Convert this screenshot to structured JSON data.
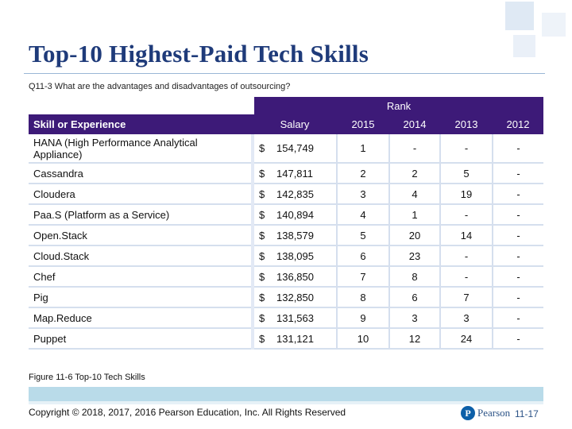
{
  "colors": {
    "title": "#1f3b7a",
    "header_bg": "#3d1a78",
    "row_line": "#d5dfee",
    "band": "#b9dbe9",
    "logo": "#0c5fa8"
  },
  "slide": {
    "title": "Top-10 Highest-Paid Tech Skills",
    "question": "Q11-3 What are the advantages and disadvantages of outsourcing?",
    "caption": "Figure 11-6 Top-10 Tech Skills",
    "copyright": "Copyright © 2018, 2017, 2016 Pearson Education, Inc. All Rights Reserved",
    "logo_text": "Pearson",
    "logo_letter": "P",
    "page_number": "11-17"
  },
  "table": {
    "rank_group": "Rank",
    "headers": {
      "skill": "Skill or Experience",
      "salary": "Salary",
      "y2015": "2015",
      "y2014": "2014",
      "y2013": "2013",
      "y2012": "2012"
    },
    "rows": [
      {
        "skill": "HANA (High Performance Analytical Appliance)",
        "currency": "$",
        "salary": "154,749",
        "y2015": "1",
        "y2014": "-",
        "y2013": "-",
        "y2012": "-"
      },
      {
        "skill": "Cassandra",
        "currency": "$",
        "salary": "147,811",
        "y2015": "2",
        "y2014": "2",
        "y2013": "5",
        "y2012": "-"
      },
      {
        "skill": "Cloudera",
        "currency": "$",
        "salary": "142,835",
        "y2015": "3",
        "y2014": "4",
        "y2013": "19",
        "y2012": "-"
      },
      {
        "skill": "Paa.S (Platform as a Service)",
        "currency": "$",
        "salary": "140,894",
        "y2015": "4",
        "y2014": "1",
        "y2013": "-",
        "y2012": "-"
      },
      {
        "skill": "Open.Stack",
        "currency": "$",
        "salary": "138,579",
        "y2015": "5",
        "y2014": "20",
        "y2013": "14",
        "y2012": "-"
      },
      {
        "skill": "Cloud.Stack",
        "currency": "$",
        "salary": "138,095",
        "y2015": "6",
        "y2014": "23",
        "y2013": "-",
        "y2012": "-"
      },
      {
        "skill": "Chef",
        "currency": "$",
        "salary": "136,850",
        "y2015": "7",
        "y2014": "8",
        "y2013": "-",
        "y2012": "-"
      },
      {
        "skill": "Pig",
        "currency": "$",
        "salary": "132,850",
        "y2015": "8",
        "y2014": "6",
        "y2013": "7",
        "y2012": "-"
      },
      {
        "skill": "Map.Reduce",
        "currency": "$",
        "salary": "131,563",
        "y2015": "9",
        "y2014": "3",
        "y2013": "3",
        "y2012": "-"
      },
      {
        "skill": "Puppet",
        "currency": "$",
        "salary": "131,121",
        "y2015": "10",
        "y2014": "12",
        "y2013": "24",
        "y2012": "-"
      }
    ]
  }
}
